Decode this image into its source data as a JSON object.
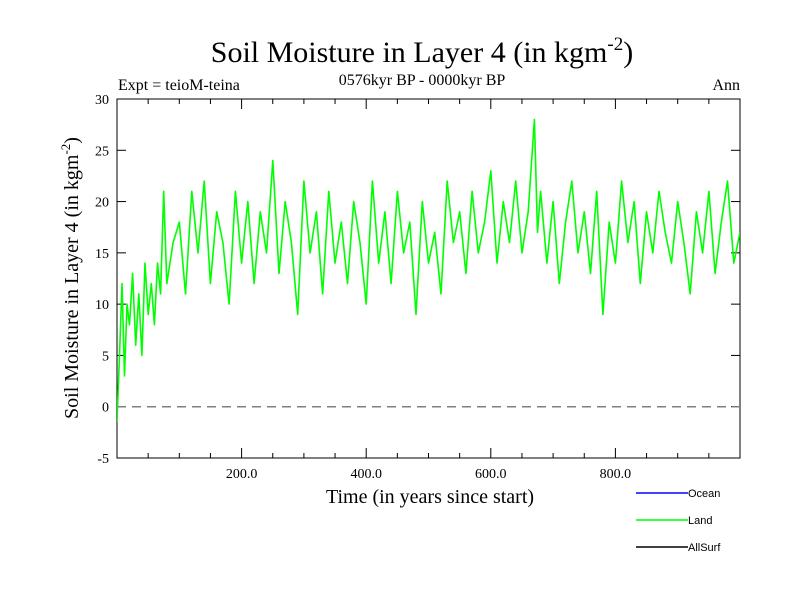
{
  "chart_data": {
    "type": "line",
    "title": "Soil Moisture in Layer 4 (in kgm",
    "title_superscript": "-2",
    "title_close": ")",
    "subtitle": "0576kyr BP - 0000kyr BP",
    "experiment_label": "Expt = teioM-teina",
    "season_label": "Ann",
    "xlabel": "Time (in years since start)",
    "ylabel": "Soil Moisture in Layer 4 (in kgm",
    "ylabel_superscript": "-2",
    "ylabel_close": ")",
    "xlim": [
      0,
      1000
    ],
    "ylim": [
      -5,
      30
    ],
    "x_ticks": [
      200,
      400,
      600,
      800
    ],
    "x_tick_labels": [
      "200.0",
      "400.0",
      "600.0",
      "800.0"
    ],
    "y_ticks": [
      -5,
      0,
      5,
      10,
      15,
      20,
      25,
      30
    ],
    "y_tick_labels": [
      "-5",
      "0",
      "5",
      "10",
      "15",
      "20",
      "25",
      "30"
    ],
    "reference_line": 0,
    "legend": [
      {
        "name": "Ocean",
        "color": "#0000ff"
      },
      {
        "name": "Land",
        "color": "#00ff00"
      },
      {
        "name": "AllSurf",
        "color": "#000000"
      }
    ],
    "series": [
      {
        "name": "Land",
        "color": "#00ff00",
        "x": [
          0,
          4,
          8,
          12,
          16,
          20,
          25,
          30,
          35,
          40,
          45,
          50,
          55,
          60,
          65,
          70,
          75,
          80,
          90,
          100,
          110,
          120,
          130,
          140,
          150,
          160,
          170,
          180,
          190,
          200,
          210,
          220,
          230,
          240,
          250,
          260,
          270,
          280,
          290,
          300,
          310,
          320,
          330,
          340,
          350,
          360,
          370,
          380,
          390,
          400,
          410,
          420,
          430,
          440,
          450,
          460,
          470,
          480,
          490,
          500,
          510,
          520,
          530,
          540,
          550,
          560,
          570,
          580,
          590,
          600,
          610,
          620,
          630,
          640,
          650,
          660,
          670,
          675,
          680,
          690,
          700,
          710,
          720,
          730,
          740,
          750,
          760,
          770,
          780,
          790,
          800,
          810,
          820,
          830,
          840,
          850,
          860,
          870,
          880,
          890,
          900,
          910,
          920,
          930,
          940,
          950,
          960,
          970,
          980,
          990,
          1000
        ],
        "values": [
          -1.5,
          5,
          12,
          3,
          10,
          8,
          13,
          6,
          11,
          5,
          14,
          9,
          12,
          8,
          14,
          11,
          21,
          12,
          16,
          18,
          11,
          21,
          15,
          22,
          12,
          19,
          16,
          10,
          21,
          14,
          20,
          12,
          19,
          15,
          24,
          13,
          20,
          16,
          9,
          22,
          15,
          19,
          11,
          21,
          14,
          18,
          12,
          20,
          16,
          10,
          22,
          14,
          19,
          12,
          21,
          15,
          18,
          9,
          20,
          14,
          17,
          11,
          22,
          16,
          19,
          13,
          21,
          15,
          18,
          23,
          14,
          20,
          16,
          22,
          15,
          19,
          28,
          17,
          21,
          14,
          20,
          12,
          18,
          22,
          15,
          19,
          13,
          21,
          9,
          18,
          14,
          22,
          16,
          20,
          12,
          19,
          15,
          21,
          17,
          14,
          20,
          16,
          11,
          19,
          15,
          21,
          13,
          18,
          22,
          14,
          17
        ]
      }
    ]
  }
}
